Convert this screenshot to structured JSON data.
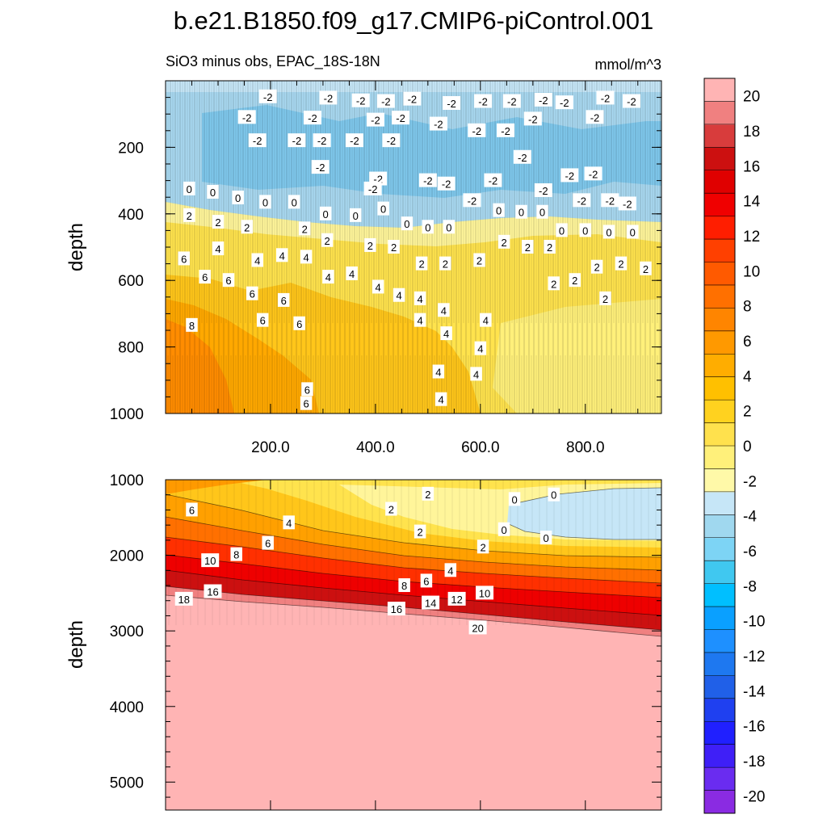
{
  "chart_data": {
    "type": "heatmap",
    "title": "b.e21.B1850.f09_g17.CMIP6-piControl.001",
    "subtitle_left": "SiO3 minus obs, EPAC_18S-18N",
    "subtitle_right": "mmol/m^3",
    "colorbar": {
      "levels": [
        -20,
        -18,
        -16,
        -14,
        -12,
        -10,
        -8,
        -6,
        -4,
        -2,
        0,
        2,
        4,
        6,
        8,
        10,
        12,
        14,
        16,
        18,
        20
      ],
      "tick_labels": [
        "20",
        "18",
        "16",
        "14",
        "12",
        "10",
        "8",
        "6",
        "4",
        "2",
        "0",
        "-2",
        "-4",
        "-6",
        "-8",
        "-10",
        "-12",
        "-14",
        "-16",
        "-18",
        "-20"
      ],
      "colors": [
        "#8a2be2",
        "#6a2cf0",
        "#3f1ff7",
        "#2020ff",
        "#1f40f0",
        "#2060e8",
        "#1e78f0",
        "#1e90ff",
        "#0aa0ff",
        "#00bfff",
        "#40c8f0",
        "#7dd4f5",
        "#a0d8ef",
        "#c6e6f7",
        "#fff9a8",
        "#fff07a",
        "#ffe14d",
        "#ffd21f",
        "#ffc000",
        "#ffad00",
        "#ff9900",
        "#ff8500",
        "#ff7000",
        "#ff5a00",
        "#ff4000",
        "#ff1e00",
        "#f00000",
        "#e00000",
        "#cc1010",
        "#d83c3c",
        "#f08080",
        "#ffb4b4"
      ]
    },
    "top_panel": {
      "xlabel": "",
      "ylabel": "depth",
      "x_ticks": [
        "200.0",
        "400.0",
        "600.0",
        "800.0"
      ],
      "x_tick_values": [
        200,
        400,
        600,
        800
      ],
      "xlim": [
        0,
        945
      ],
      "y_ticks": [
        "200",
        "400",
        "600",
        "800",
        "1000"
      ],
      "y_tick_values": [
        200,
        400,
        600,
        800,
        1000
      ],
      "ylim": [
        0,
        1000
      ],
      "contour_labels": [
        {
          "x": 195,
          "y": 48,
          "text": "-2"
        },
        {
          "x": 310,
          "y": 52,
          "text": "-2"
        },
        {
          "x": 372,
          "y": 60,
          "text": "-2"
        },
        {
          "x": 420,
          "y": 62,
          "text": "-2"
        },
        {
          "x": 470,
          "y": 55,
          "text": "-2"
        },
        {
          "x": 545,
          "y": 68,
          "text": "-2"
        },
        {
          "x": 605,
          "y": 62,
          "text": "-2"
        },
        {
          "x": 660,
          "y": 62,
          "text": "-2"
        },
        {
          "x": 720,
          "y": 58,
          "text": "-2"
        },
        {
          "x": 760,
          "y": 66,
          "text": "-2"
        },
        {
          "x": 838,
          "y": 52,
          "text": "-2"
        },
        {
          "x": 888,
          "y": 62,
          "text": "-2"
        },
        {
          "x": 155,
          "y": 110,
          "text": "-2"
        },
        {
          "x": 280,
          "y": 112,
          "text": "-2"
        },
        {
          "x": 400,
          "y": 118,
          "text": "-2"
        },
        {
          "x": 448,
          "y": 112,
          "text": "-2"
        },
        {
          "x": 520,
          "y": 130,
          "text": "-2"
        },
        {
          "x": 593,
          "y": 150,
          "text": "-2"
        },
        {
          "x": 648,
          "y": 150,
          "text": "-2"
        },
        {
          "x": 700,
          "y": 115,
          "text": "-2"
        },
        {
          "x": 818,
          "y": 110,
          "text": "-2"
        },
        {
          "x": 175,
          "y": 180,
          "text": "-2"
        },
        {
          "x": 250,
          "y": 180,
          "text": "-2"
        },
        {
          "x": 298,
          "y": 180,
          "text": "-2"
        },
        {
          "x": 360,
          "y": 180,
          "text": "-2"
        },
        {
          "x": 430,
          "y": 180,
          "text": "-2"
        },
        {
          "x": 680,
          "y": 230,
          "text": "-2"
        },
        {
          "x": 295,
          "y": 260,
          "text": "-2"
        },
        {
          "x": 405,
          "y": 295,
          "text": "-2"
        },
        {
          "x": 395,
          "y": 325,
          "text": "-2"
        },
        {
          "x": 500,
          "y": 300,
          "text": "-2"
        },
        {
          "x": 535,
          "y": 310,
          "text": "-2"
        },
        {
          "x": 624,
          "y": 300,
          "text": "-2"
        },
        {
          "x": 720,
          "y": 330,
          "text": "-2"
        },
        {
          "x": 770,
          "y": 285,
          "text": "-2"
        },
        {
          "x": 815,
          "y": 280,
          "text": "-2"
        },
        {
          "x": 584,
          "y": 360,
          "text": "-2"
        },
        {
          "x": 793,
          "y": 360,
          "text": "-2"
        },
        {
          "x": 847,
          "y": 360,
          "text": "-2"
        },
        {
          "x": 880,
          "y": 370,
          "text": "-2"
        },
        {
          "x": 45,
          "y": 325,
          "text": "0"
        },
        {
          "x": 90,
          "y": 335,
          "text": "0"
        },
        {
          "x": 138,
          "y": 352,
          "text": "0"
        },
        {
          "x": 190,
          "y": 365,
          "text": "0"
        },
        {
          "x": 245,
          "y": 365,
          "text": "0"
        },
        {
          "x": 305,
          "y": 400,
          "text": "0"
        },
        {
          "x": 362,
          "y": 405,
          "text": "0"
        },
        {
          "x": 415,
          "y": 385,
          "text": "0"
        },
        {
          "x": 460,
          "y": 430,
          "text": "0"
        },
        {
          "x": 500,
          "y": 440,
          "text": "0"
        },
        {
          "x": 540,
          "y": 440,
          "text": "0"
        },
        {
          "x": 635,
          "y": 390,
          "text": "0"
        },
        {
          "x": 678,
          "y": 395,
          "text": "0"
        },
        {
          "x": 718,
          "y": 395,
          "text": "0"
        },
        {
          "x": 755,
          "y": 450,
          "text": "0"
        },
        {
          "x": 800,
          "y": 450,
          "text": "0"
        },
        {
          "x": 845,
          "y": 455,
          "text": "0"
        },
        {
          "x": 890,
          "y": 455,
          "text": "0"
        },
        {
          "x": 45,
          "y": 405,
          "text": "2"
        },
        {
          "x": 100,
          "y": 425,
          "text": "2"
        },
        {
          "x": 155,
          "y": 440,
          "text": "2"
        },
        {
          "x": 265,
          "y": 445,
          "text": "2"
        },
        {
          "x": 308,
          "y": 480,
          "text": "2"
        },
        {
          "x": 390,
          "y": 495,
          "text": "2"
        },
        {
          "x": 435,
          "y": 500,
          "text": "2"
        },
        {
          "x": 488,
          "y": 550,
          "text": "2"
        },
        {
          "x": 533,
          "y": 550,
          "text": "2"
        },
        {
          "x": 598,
          "y": 540,
          "text": "2"
        },
        {
          "x": 645,
          "y": 485,
          "text": "2"
        },
        {
          "x": 690,
          "y": 500,
          "text": "2"
        },
        {
          "x": 732,
          "y": 500,
          "text": "2"
        },
        {
          "x": 740,
          "y": 610,
          "text": "2"
        },
        {
          "x": 780,
          "y": 600,
          "text": "2"
        },
        {
          "x": 822,
          "y": 560,
          "text": "2"
        },
        {
          "x": 868,
          "y": 550,
          "text": "2"
        },
        {
          "x": 915,
          "y": 565,
          "text": "2"
        },
        {
          "x": 838,
          "y": 655,
          "text": "2"
        },
        {
          "x": 35,
          "y": 535,
          "text": "6"
        },
        {
          "x": 75,
          "y": 590,
          "text": "6"
        },
        {
          "x": 120,
          "y": 600,
          "text": "6"
        },
        {
          "x": 165,
          "y": 640,
          "text": "6"
        },
        {
          "x": 225,
          "y": 660,
          "text": "6"
        },
        {
          "x": 185,
          "y": 720,
          "text": "6"
        },
        {
          "x": 255,
          "y": 730,
          "text": "6"
        },
        {
          "x": 270,
          "y": 928,
          "text": "6"
        },
        {
          "x": 268,
          "y": 970,
          "text": "6"
        },
        {
          "x": 50,
          "y": 735,
          "text": "8"
        },
        {
          "x": 100,
          "y": 505,
          "text": "4"
        },
        {
          "x": 175,
          "y": 540,
          "text": "4"
        },
        {
          "x": 222,
          "y": 525,
          "text": "4"
        },
        {
          "x": 268,
          "y": 530,
          "text": "4"
        },
        {
          "x": 310,
          "y": 590,
          "text": "4"
        },
        {
          "x": 355,
          "y": 580,
          "text": "4"
        },
        {
          "x": 405,
          "y": 620,
          "text": "4"
        },
        {
          "x": 445,
          "y": 645,
          "text": "4"
        },
        {
          "x": 485,
          "y": 655,
          "text": "4"
        },
        {
          "x": 485,
          "y": 720,
          "text": "4"
        },
        {
          "x": 530,
          "y": 690,
          "text": "4"
        },
        {
          "x": 535,
          "y": 760,
          "text": "4"
        },
        {
          "x": 610,
          "y": 720,
          "text": "4"
        },
        {
          "x": 600,
          "y": 805,
          "text": "4"
        },
        {
          "x": 520,
          "y": 875,
          "text": "4"
        },
        {
          "x": 592,
          "y": 882,
          "text": "4"
        },
        {
          "x": 525,
          "y": 958,
          "text": "4"
        }
      ]
    },
    "bottom_panel": {
      "xlabel": "",
      "ylabel": "depth",
      "y_ticks": [
        "1000",
        "2000",
        "3000",
        "4000",
        "5000"
      ],
      "y_tick_values": [
        1000,
        2000,
        3000,
        4000,
        5000
      ],
      "ylim": [
        1000,
        5370
      ],
      "xlim": [
        0,
        945
      ],
      "contour_labels": [
        {
          "x": 500,
          "y": 1190,
          "text": "2"
        },
        {
          "x": 430,
          "y": 1390,
          "text": "2"
        },
        {
          "x": 485,
          "y": 1690,
          "text": "2"
        },
        {
          "x": 605,
          "y": 1890,
          "text": "2"
        },
        {
          "x": 665,
          "y": 1260,
          "text": "0"
        },
        {
          "x": 740,
          "y": 1200,
          "text": "0"
        },
        {
          "x": 645,
          "y": 1660,
          "text": "0"
        },
        {
          "x": 725,
          "y": 1770,
          "text": "0"
        },
        {
          "x": 50,
          "y": 1400,
          "text": "6"
        },
        {
          "x": 235,
          "y": 1570,
          "text": "4"
        },
        {
          "x": 195,
          "y": 1840,
          "text": "6"
        },
        {
          "x": 135,
          "y": 1990,
          "text": "8"
        },
        {
          "x": 85,
          "y": 2070,
          "text": "10"
        },
        {
          "x": 35,
          "y": 2580,
          "text": "18"
        },
        {
          "x": 90,
          "y": 2480,
          "text": "16"
        },
        {
          "x": 543,
          "y": 2200,
          "text": "4"
        },
        {
          "x": 497,
          "y": 2340,
          "text": "6"
        },
        {
          "x": 455,
          "y": 2400,
          "text": "8"
        },
        {
          "x": 608,
          "y": 2500,
          "text": "10"
        },
        {
          "x": 555,
          "y": 2580,
          "text": "12"
        },
        {
          "x": 505,
          "y": 2630,
          "text": "14"
        },
        {
          "x": 440,
          "y": 2710,
          "text": "16"
        },
        {
          "x": 595,
          "y": 2960,
          "text": "20"
        }
      ]
    }
  }
}
